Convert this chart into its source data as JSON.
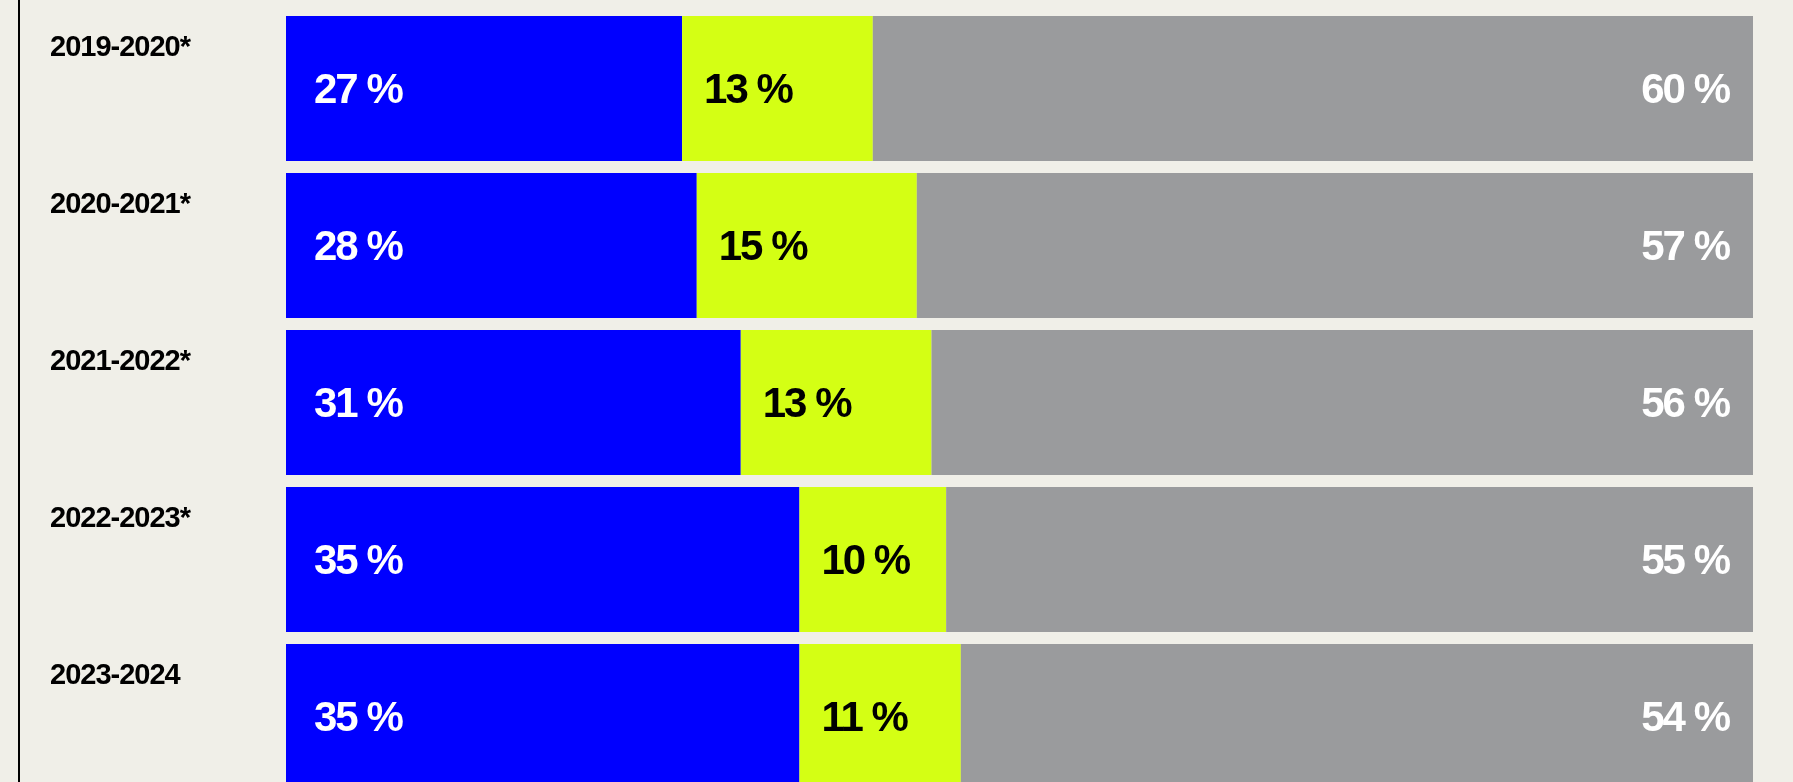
{
  "chart_data": {
    "type": "bar",
    "orientation": "horizontal",
    "stacked": true,
    "tick_labels": "y",
    "xlim": [
      0,
      100
    ],
    "categories": [
      "2019-2020*",
      "2020-2021*",
      "2021-2022*",
      "2022-2023*",
      "2023-2024"
    ],
    "series": [
      {
        "color": "#0000ff",
        "values": [
          27,
          28,
          31,
          35,
          35
        ],
        "value_labels": [
          "27 %",
          "28 %",
          "31 %",
          "35 %",
          "35 %"
        ]
      },
      {
        "color": "#d4ff14",
        "values": [
          13,
          15,
          13,
          10,
          11
        ],
        "value_labels": [
          "13 %",
          "15 %",
          "13 %",
          "10 %",
          "11 %"
        ]
      },
      {
        "color": "#9a9b9d",
        "values": [
          60,
          57,
          56,
          55,
          54
        ],
        "value_labels": [
          "60 %",
          "57 %",
          "56 %",
          "55 %",
          "54 %"
        ]
      }
    ]
  }
}
